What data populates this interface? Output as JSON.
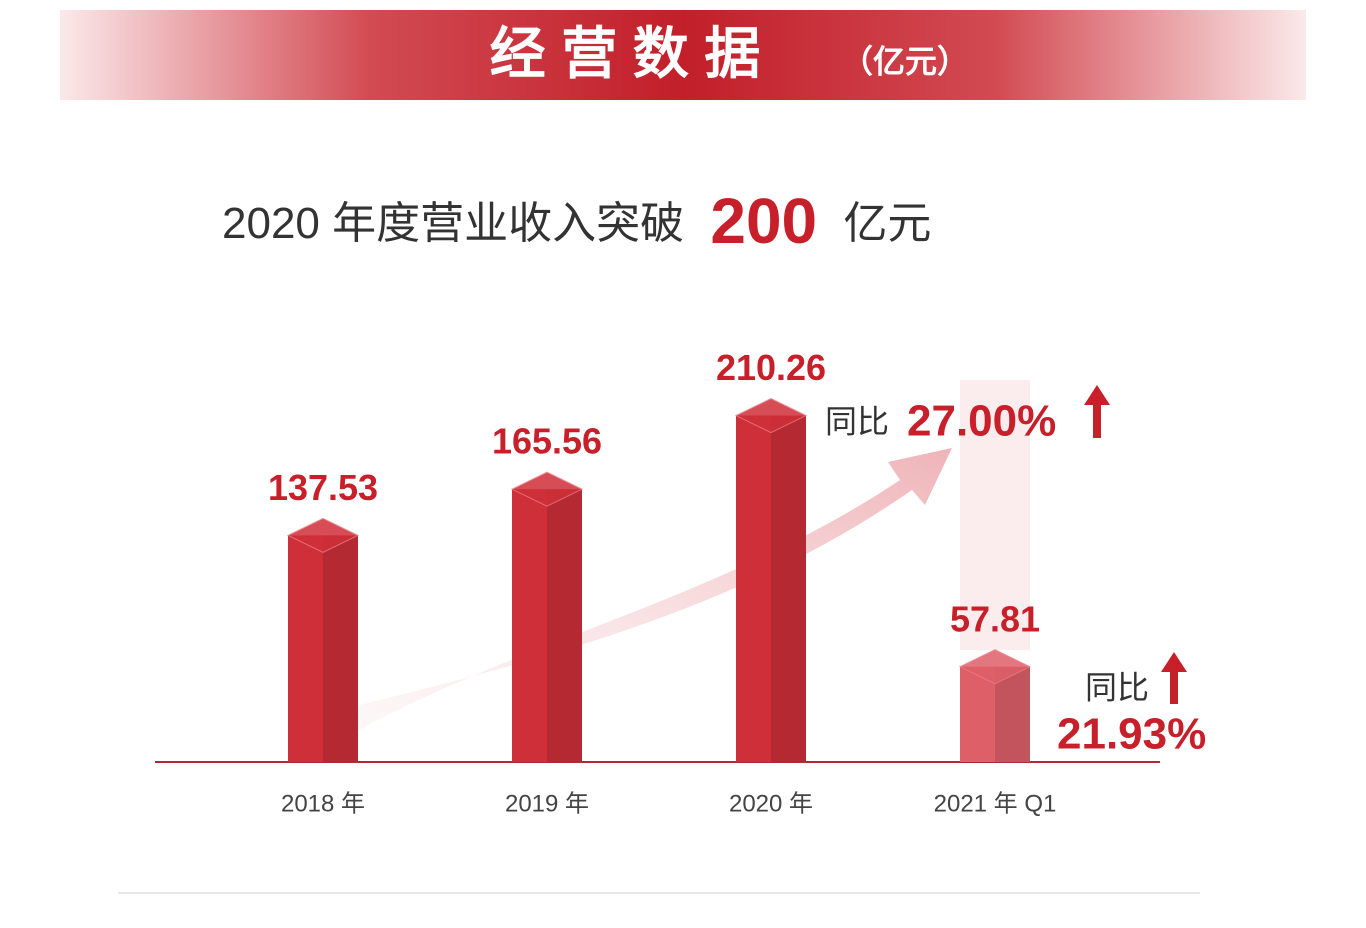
{
  "header": {
    "title": "经 营 数 据",
    "unit": "（亿元）"
  },
  "chart_data": {
    "type": "bar",
    "subtitle": {
      "before": "2020 年度营业收入突破",
      "highlight": "200",
      "after": "亿元"
    },
    "categories": [
      "2018 年",
      "2019 年",
      "2020 年",
      "2021 年 Q1"
    ],
    "values": [
      137.53,
      165.56,
      210.26,
      57.81
    ],
    "colors": [
      "#cf2f39",
      "#cf2f39",
      "#cf2f39",
      "#df5f69"
    ],
    "ylim": [
      0,
      230
    ],
    "annotations": [
      {
        "text": "同比",
        "change": "27.00%"
      },
      {
        "text": "同比",
        "change": "21.93%"
      }
    ]
  }
}
